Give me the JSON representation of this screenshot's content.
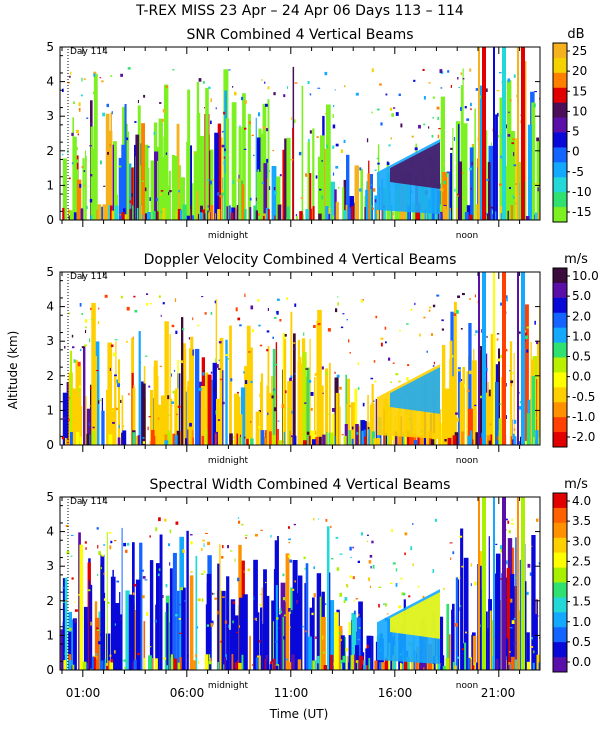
{
  "figure": {
    "title": "T-REX MISS   23 Apr – 24 Apr 06 Days 113 – 114",
    "ylabel": "Altitude (km)",
    "xlabel": "Time (UT)",
    "x_tick_labels": [
      "01:00",
      "06:00",
      "11:00",
      "16:00",
      "21:00"
    ],
    "marker_labels": [
      "midnight",
      "noon"
    ],
    "day_label": "Day 114"
  },
  "chart_data": [
    {
      "type": "heatmap",
      "title": "SNR Combined 4 Vertical Beams",
      "ylim": [
        0,
        5
      ],
      "y_ticks": [
        "0",
        "1",
        "2",
        "3",
        "4",
        "5"
      ],
      "colorbar": {
        "unit": "dB",
        "labels": [
          "25",
          "20",
          "15",
          "10",
          "5",
          "0",
          "-5",
          "-10",
          "-15"
        ],
        "colors": [
          "#f6b21c",
          "#f3d200",
          "#ff8000",
          "#e00000",
          "#4b0f5a",
          "#5a10a8",
          "#0808d8",
          "#1464ff",
          "#14a8ff",
          "#24d8d8",
          "#30e070",
          "#7cf020"
        ]
      },
      "background_color": "#7cf020"
    },
    {
      "type": "heatmap",
      "title": "Doppler Velocity Combined 4 Vertical Beams",
      "ylim": [
        0,
        5
      ],
      "y_ticks": [
        "0",
        "1",
        "2",
        "3",
        "4",
        "5"
      ],
      "colorbar": {
        "unit": "m/s",
        "labels": [
          "10.0",
          "5.0",
          "2.0",
          "1.0",
          "0.5",
          "0.0",
          "-0.5",
          "-1.0",
          "-2.0"
        ],
        "colors": [
          "#3c0a3c",
          "#5a10a8",
          "#0808d8",
          "#1464ff",
          "#14a8ff",
          "#30e070",
          "#b8f000",
          "#ffff00",
          "#ffd000",
          "#ff9000",
          "#ff4000",
          "#e00000"
        ]
      },
      "background_color": "#ffd000"
    },
    {
      "type": "heatmap",
      "title": "Spectral Width Combined 4 Vertical Beams",
      "ylim": [
        0,
        5
      ],
      "y_ticks": [
        "0",
        "1",
        "2",
        "3",
        "4",
        "5"
      ],
      "colorbar": {
        "unit": "m/s",
        "labels": [
          "4.0",
          "3.5",
          "3.0",
          "2.5",
          "2.0",
          "1.5",
          "1.0",
          "0.5",
          "0.0"
        ],
        "colors": [
          "#e00000",
          "#ff6000",
          "#ff9000",
          "#ffd000",
          "#ffff00",
          "#a8f000",
          "#30e070",
          "#24d8d8",
          "#14a8ff",
          "#1464ff",
          "#0808d8",
          "#5a10a8"
        ]
      },
      "background_color": "#0808d8"
    }
  ]
}
